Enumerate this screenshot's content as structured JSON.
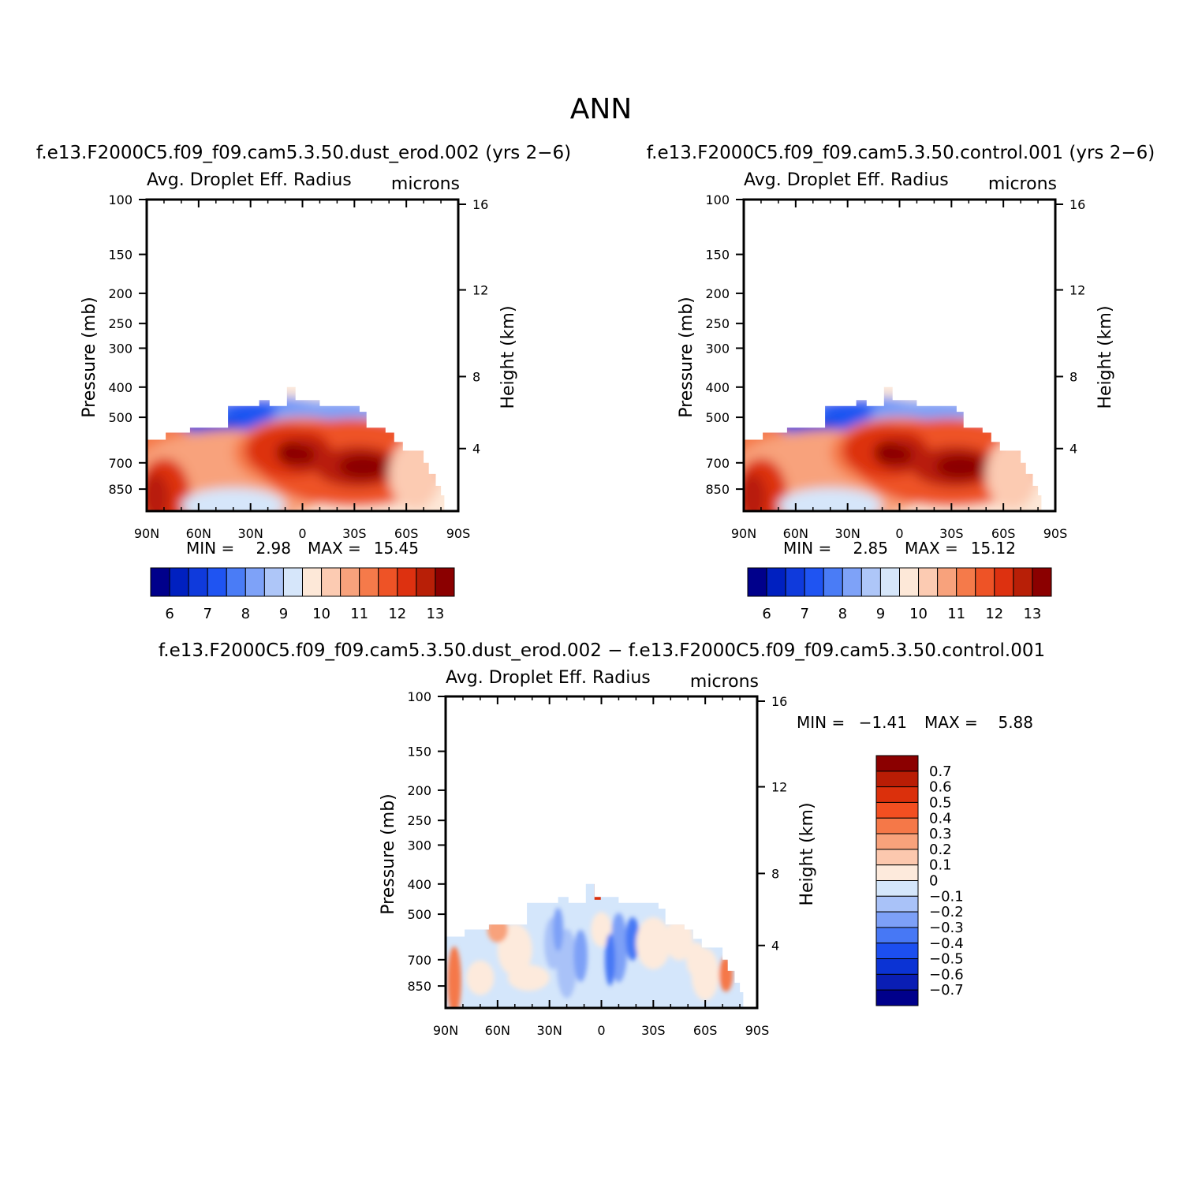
{
  "title": "ANN",
  "colors": {
    "abs_palette": [
      "#00008b",
      "#0020c0",
      "#0f3adc",
      "#1f54f2",
      "#4a7cf6",
      "#7ea2f8",
      "#aec6f8",
      "#d6e6fa",
      "#fde8d8",
      "#fccbb2",
      "#f8a27c",
      "#f57a4a",
      "#ee5326",
      "#dd3110",
      "#b81f07",
      "#8b0000"
    ],
    "diff_palette": [
      "#00008b",
      "#0a1eb4",
      "#0b33d4",
      "#1c4ff0",
      "#4778f5",
      "#7da0f7",
      "#a9c2f8",
      "#d4e6fb",
      "#fdeadc",
      "#fcc8ae",
      "#f8a27b",
      "#f57848",
      "#f34f21",
      "#db300c",
      "#b91d05",
      "#8b0000"
    ]
  },
  "panels": [
    {
      "id": "case",
      "header": "f.e13.F2000C5.f09_f09.cam5.3.50.dust_erod.002  (yrs 2−6)",
      "field_label": "Avg. Droplet Eff. Radius",
      "units_label": "microns",
      "y_left_title": "Pressure (mb)",
      "y_right_title": "Height (km)",
      "min_label": "MIN =",
      "min_value": "2.98",
      "max_label": "MAX =",
      "max_value": "15.45"
    },
    {
      "id": "control",
      "header": "f.e13.F2000C5.f09_f09.cam5.3.50.control.001  (yrs 2−6)",
      "field_label": "Avg. Droplet Eff. Radius",
      "units_label": "microns",
      "y_left_title": "Pressure (mb)",
      "y_right_title": "Height (km)",
      "min_label": "MIN =",
      "min_value": "2.85",
      "max_label": "MAX =",
      "max_value": "15.12"
    },
    {
      "id": "difference",
      "header": "f.e13.F2000C5.f09_f09.cam5.3.50.dust_erod.002 − f.e13.F2000C5.f09_f09.cam5.3.50.control.001",
      "field_label": "Avg. Droplet Eff. Radius",
      "units_label": "microns",
      "y_left_title": "Pressure (mb)",
      "y_right_title": "Height (km)",
      "min_label": "MIN =",
      "min_value": "−1.41",
      "max_label": "MAX =",
      "max_value": "5.88"
    }
  ],
  "chart_data": [
    {
      "type": "heatmap",
      "title": "f.e13.F2000C5.f09_f09.cam5.3.50.dust_erod.002  (yrs 2−6)",
      "subtitle": "Avg. Droplet Eff. Radius",
      "units": "microns",
      "ylabel": "Pressure (mb)",
      "y2label": "Height (km)",
      "x_ticks": [
        "90N",
        "60N",
        "30N",
        "0",
        "30S",
        "60S",
        "90S"
      ],
      "x_range": [
        90,
        -90
      ],
      "y_ticks": [
        100,
        150,
        200,
        250,
        300,
        400,
        500,
        700,
        850
      ],
      "y_range": [
        100,
        1000
      ],
      "y_scale": "log",
      "y2_ticks": [
        16,
        12,
        8,
        4
      ],
      "colorbar_levels": [
        6,
        7,
        8,
        9,
        10,
        11,
        12,
        13
      ],
      "min": 2.98,
      "max": 15.45
    },
    {
      "type": "heatmap",
      "title": "f.e13.F2000C5.f09_f09.cam5.3.50.control.001  (yrs 2−6)",
      "subtitle": "Avg. Droplet Eff. Radius",
      "units": "microns",
      "ylabel": "Pressure (mb)",
      "y2label": "Height (km)",
      "x_ticks": [
        "90N",
        "60N",
        "30N",
        "0",
        "30S",
        "60S",
        "90S"
      ],
      "x_range": [
        90,
        -90
      ],
      "y_ticks": [
        100,
        150,
        200,
        250,
        300,
        400,
        500,
        700,
        850
      ],
      "y_range": [
        100,
        1000
      ],
      "y_scale": "log",
      "y2_ticks": [
        16,
        12,
        8,
        4
      ],
      "colorbar_levels": [
        6,
        7,
        8,
        9,
        10,
        11,
        12,
        13
      ],
      "min": 2.85,
      "max": 15.12
    },
    {
      "type": "heatmap",
      "title": "f.e13.F2000C5.f09_f09.cam5.3.50.dust_erod.002 − f.e13.F2000C5.f09_f09.cam5.3.50.control.001",
      "subtitle": "Avg. Droplet Eff. Radius",
      "units": "microns",
      "ylabel": "Pressure (mb)",
      "y2label": "Height (km)",
      "x_ticks": [
        "90N",
        "60N",
        "30N",
        "0",
        "30S",
        "60S",
        "90S"
      ],
      "x_range": [
        90,
        -90
      ],
      "y_ticks": [
        100,
        150,
        200,
        250,
        300,
        400,
        500,
        700,
        850
      ],
      "y_range": [
        100,
        1000
      ],
      "y_scale": "log",
      "y2_ticks": [
        16,
        12,
        8,
        4
      ],
      "colorbar_levels": [
        "0.7",
        "0.6",
        "0.5",
        "0.4",
        "0.3",
        "0.2",
        "0.1",
        "0",
        "−0.1",
        "−0.2",
        "−0.3",
        "−0.4",
        "−0.5",
        "−0.6",
        "−0.7"
      ],
      "min": -1.41,
      "max": 5.88
    }
  ]
}
